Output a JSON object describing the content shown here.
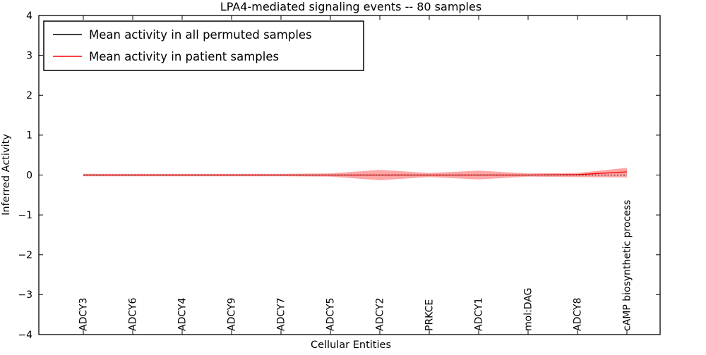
{
  "chart_data": {
    "type": "line",
    "title": "LPA4-mediated signaling events -- 80 samples",
    "xlabel": "Cellular Entities",
    "ylabel": "Inferred Activity",
    "ylim": [
      -4,
      4
    ],
    "yticks": [
      -4,
      -3,
      -2,
      -1,
      0,
      1,
      2,
      3,
      4
    ],
    "grid": false,
    "categories": [
      "ADCY3",
      "ADCY6",
      "ADCY4",
      "ADCY9",
      "ADCY7",
      "ADCY5",
      "ADCY2",
      "PRKCE",
      "ADCY1",
      "mol:DAG",
      "ADCY8",
      "cAMP biosynthetic process"
    ],
    "series": [
      {
        "name": "Mean activity in all permuted samples",
        "color": "#000000",
        "style": "dotted",
        "values": [
          0,
          0,
          0,
          0,
          0,
          0,
          0,
          0,
          0,
          0,
          0,
          0
        ]
      },
      {
        "name": "Mean activity in patient samples",
        "color": "#ff0000",
        "style": "solid",
        "values": [
          0,
          0,
          0,
          0,
          0,
          0,
          0,
          0,
          0,
          0,
          0.01,
          0.08
        ]
      }
    ],
    "band": {
      "name": "patient-sample-std-band",
      "color": "#ff0000",
      "opacity": 0.35,
      "upper": [
        0.03,
        0.03,
        0.03,
        0.03,
        0.03,
        0.04,
        0.13,
        0.05,
        0.11,
        0.04,
        0.05,
        0.18
      ],
      "lower": [
        -0.03,
        -0.03,
        -0.03,
        -0.03,
        -0.03,
        -0.04,
        -0.13,
        -0.05,
        -0.11,
        -0.04,
        -0.05,
        -0.06
      ]
    },
    "legend": {
      "position": "upper left"
    }
  }
}
